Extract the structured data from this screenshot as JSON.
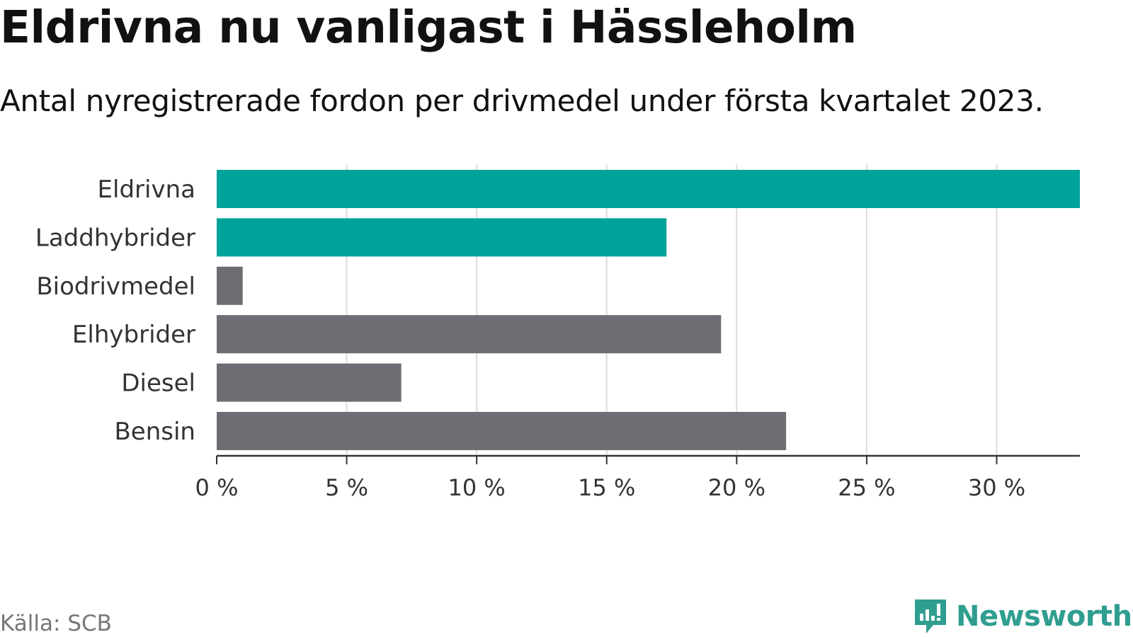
{
  "title": "Eldrivna nu vanligast i Hässleholm",
  "subtitle": "Antal nyregistrerade fordon per drivmedel under första kvartalet 2023.",
  "source": "Källa: SCB",
  "brand": {
    "name": "Newsworthy",
    "icon": "newsworthy-logo-icon",
    "color": "#2f9e90"
  },
  "colors": {
    "highlight": "#00a39a",
    "other": "#6e6d73",
    "grid": "#dddddd",
    "axis": "#333333"
  },
  "chart_data": {
    "type": "bar",
    "orientation": "horizontal",
    "categories": [
      "Eldrivna",
      "Laddhybrider",
      "Biodrivmedel",
      "Elhybrider",
      "Diesel",
      "Bensin"
    ],
    "values": [
      33.2,
      17.3,
      1.0,
      19.4,
      7.1,
      21.9
    ],
    "highlighted": [
      true,
      true,
      false,
      false,
      false,
      false
    ],
    "unit": "%",
    "xlim": [
      0,
      33.2
    ],
    "xticks": [
      0,
      5,
      10,
      15,
      20,
      25,
      30
    ],
    "xtick_labels": [
      "0 %",
      "5 %",
      "10 %",
      "15 %",
      "20 %",
      "25 %",
      "30 %"
    ],
    "grid": true
  }
}
